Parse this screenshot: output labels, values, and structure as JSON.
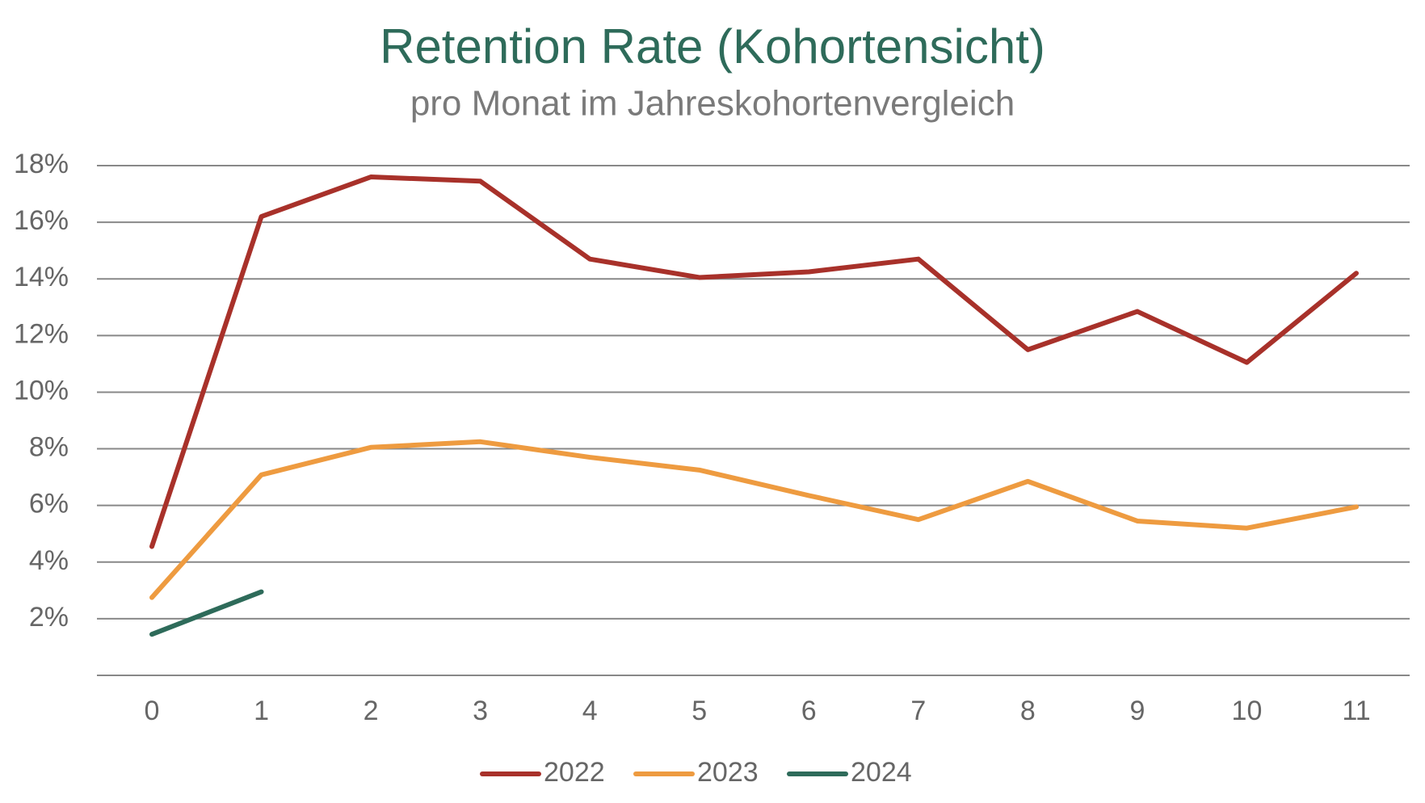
{
  "chart_data": {
    "type": "line",
    "title": "Retention Rate (Kohortensicht)",
    "subtitle": "pro Monat im Jahreskohortenvergleich",
    "categories": [
      "0",
      "1",
      "2",
      "3",
      "4",
      "5",
      "6",
      "7",
      "8",
      "9",
      "10",
      "11"
    ],
    "series": [
      {
        "name": "2022",
        "color": "#a8312a",
        "values": [
          4.55,
          16.2,
          17.6,
          17.45,
          14.7,
          14.05,
          14.25,
          14.7,
          11.5,
          12.85,
          11.05,
          14.2
        ]
      },
      {
        "name": "2023",
        "color": "#ee9b40",
        "values": [
          2.75,
          7.08,
          8.05,
          8.25,
          7.7,
          7.25,
          6.35,
          5.5,
          6.85,
          5.45,
          5.2,
          5.95
        ]
      },
      {
        "name": "2024",
        "color": "#2e6b5a",
        "values": [
          1.45,
          2.95,
          null,
          null,
          null,
          null,
          null,
          null,
          null,
          null,
          null,
          null
        ]
      }
    ],
    "ylim": [
      0,
      18
    ],
    "yticks": [
      {
        "value": 2,
        "label": "2%"
      },
      {
        "value": 4,
        "label": "4%"
      },
      {
        "value": 6,
        "label": "6%"
      },
      {
        "value": 8,
        "label": "8%"
      },
      {
        "value": 10,
        "label": "10%"
      },
      {
        "value": 12,
        "label": "12%"
      },
      {
        "value": 14,
        "label": "14%"
      },
      {
        "value": 16,
        "label": "16%"
      },
      {
        "value": 18,
        "label": "18%"
      }
    ],
    "grid": true,
    "legend": "bottom"
  }
}
